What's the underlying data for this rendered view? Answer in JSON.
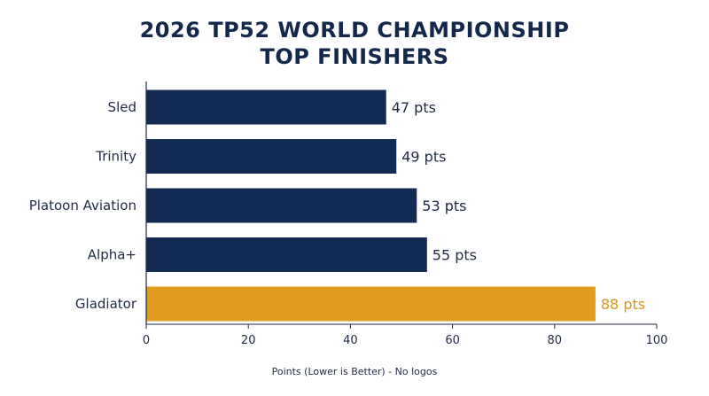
{
  "title_lines": [
    "2026 TP52 WORLD CHAMPIONSHIP",
    "TOP FINISHERS"
  ],
  "chart_data": {
    "type": "bar",
    "orientation": "horizontal",
    "title": "2026 TP52 WORLD CHAMPIONSHIP TOP FINISHERS",
    "categories": [
      "Sled",
      "Trinity",
      "Platoon Aviation",
      "Alpha+",
      "Gladiator"
    ],
    "values": [
      47,
      49,
      53,
      55,
      88
    ],
    "value_labels": [
      "47 pts",
      "49 pts",
      "53 pts",
      "55 pts",
      "88 pts"
    ],
    "highlight_index": 4,
    "xlabel": "Points (Lower is Better) - No logos",
    "ylabel": "",
    "xlim": [
      0,
      100
    ],
    "xticks": [
      0,
      20,
      40,
      60,
      80,
      100
    ],
    "grid": false,
    "colors": {
      "bar": "#132a52",
      "highlight": "#e09c1f",
      "label": "#1f2a44",
      "highlight_label": "#d9951c",
      "axis": "#1f2a44"
    }
  }
}
